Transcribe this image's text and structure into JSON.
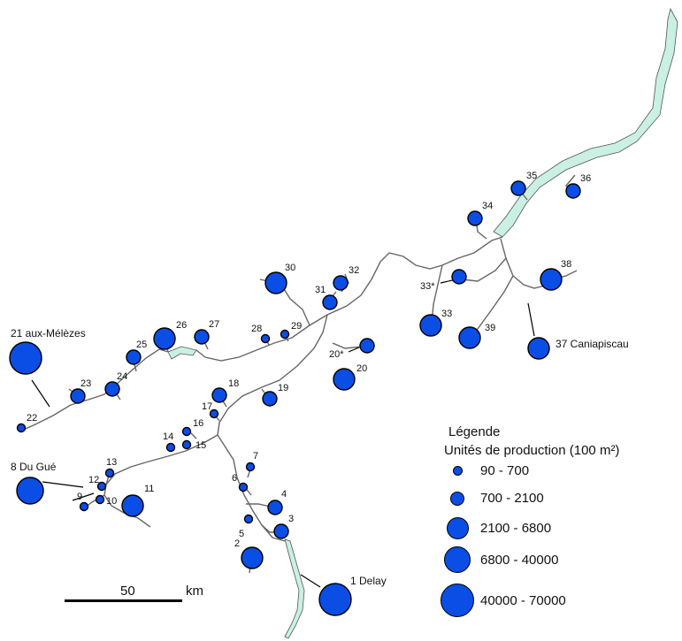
{
  "legend": {
    "title": "Légende",
    "subtitle": "Unités de production (100 m²)",
    "classes": [
      "90 - 700",
      "700 - 2100",
      "2100 - 6800",
      "6800 - 40000",
      "40000 - 70000"
    ]
  },
  "scale": {
    "value": "50",
    "unit": "km"
  },
  "colors": {
    "point_fill": "#0a4ee6",
    "lake_fill": "#c9f0e3",
    "river": "#555555"
  },
  "sites": [
    {
      "label": "1",
      "name": "Delay",
      "class": 5
    },
    {
      "label": "2",
      "class": 3
    },
    {
      "label": "3",
      "class": 2
    },
    {
      "label": "4",
      "class": 2
    },
    {
      "label": "5",
      "class": 1
    },
    {
      "label": "6",
      "class": 1
    },
    {
      "label": "7",
      "class": 1
    },
    {
      "label": "8",
      "name": "Du Gué",
      "class": 4
    },
    {
      "label": "9",
      "class": 1
    },
    {
      "label": "10",
      "class": 1
    },
    {
      "label": "11",
      "class": 3
    },
    {
      "label": "12",
      "class": 1
    },
    {
      "label": "13",
      "class": 1
    },
    {
      "label": "14",
      "class": 1
    },
    {
      "label": "15",
      "class": 1
    },
    {
      "label": "16",
      "class": 1
    },
    {
      "label": "17",
      "class": 1
    },
    {
      "label": "18",
      "class": 2
    },
    {
      "label": "19",
      "class": 2
    },
    {
      "label": "20",
      "class": 3
    },
    {
      "label": "20*",
      "class": 2
    },
    {
      "label": "21",
      "name": "aux-Mélèzes",
      "class": 5
    },
    {
      "label": "22",
      "class": 1
    },
    {
      "label": "23",
      "class": 2
    },
    {
      "label": "24",
      "class": 2
    },
    {
      "label": "25",
      "class": 2
    },
    {
      "label": "26",
      "class": 3
    },
    {
      "label": "27",
      "class": 2
    },
    {
      "label": "28",
      "class": 1
    },
    {
      "label": "29",
      "class": 1
    },
    {
      "label": "30",
      "class": 3
    },
    {
      "label": "31",
      "class": 2
    },
    {
      "label": "32",
      "class": 2
    },
    {
      "label": "33",
      "class": 3
    },
    {
      "label": "33*",
      "class": 2
    },
    {
      "label": "34",
      "class": 2
    },
    {
      "label": "35",
      "class": 2
    },
    {
      "label": "36",
      "class": 2
    },
    {
      "label": "37",
      "name": "Caniapiscau",
      "class": 3
    },
    {
      "label": "38",
      "class": 3
    },
    {
      "label": "39",
      "class": 3
    }
  ]
}
